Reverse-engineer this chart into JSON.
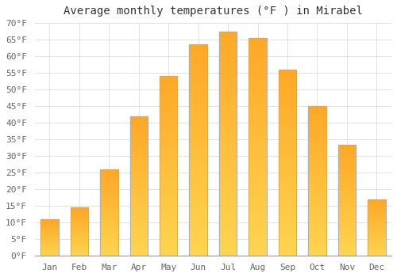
{
  "title": "Average monthly temperatures (°F ) in Mirabel",
  "months": [
    "Jan",
    "Feb",
    "Mar",
    "Apr",
    "May",
    "Jun",
    "Jul",
    "Aug",
    "Sep",
    "Oct",
    "Nov",
    "Dec"
  ],
  "values": [
    11,
    14.5,
    26,
    42,
    54,
    63.5,
    67.5,
    65.5,
    56,
    45,
    33.5,
    17
  ],
  "bar_color_main": "#FFA726",
  "bar_color_light": "#FFD54F",
  "bar_edge_color": "#B0B0B0",
  "ylim": [
    0,
    70
  ],
  "yticks": [
    0,
    5,
    10,
    15,
    20,
    25,
    30,
    35,
    40,
    45,
    50,
    55,
    60,
    65,
    70
  ],
  "ytick_labels": [
    "0°F",
    "5°F",
    "10°F",
    "15°F",
    "20°F",
    "25°F",
    "30°F",
    "35°F",
    "40°F",
    "45°F",
    "50°F",
    "55°F",
    "60°F",
    "65°F",
    "70°F"
  ],
  "background_color": "#FFFFFF",
  "grid_color": "#DDDDDD",
  "title_fontsize": 10,
  "tick_fontsize": 8,
  "bar_width": 0.6
}
